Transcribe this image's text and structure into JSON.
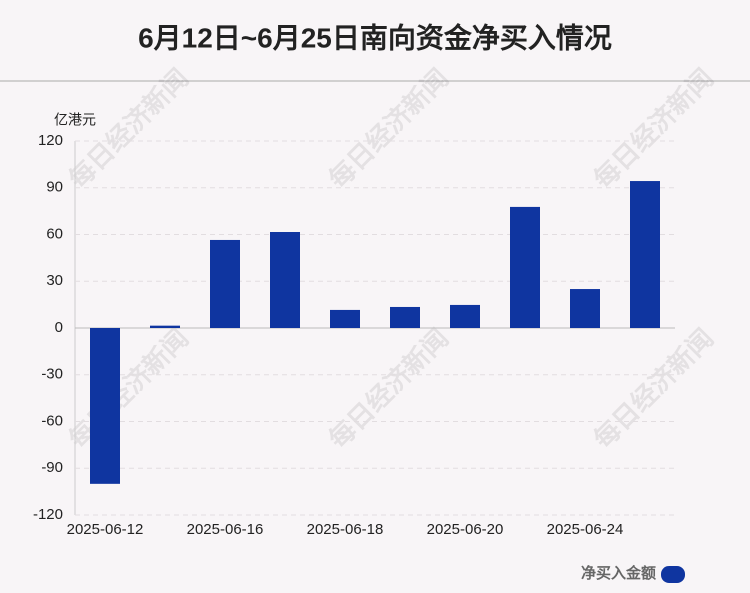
{
  "chart_data": {
    "type": "bar",
    "title": "6月12日~6月25日南向资金净买入情况",
    "y_unit": "亿港元",
    "watermark": "每日经济新闻",
    "categories": [
      "2025-06-12",
      null,
      "2025-06-16",
      null,
      "2025-06-18",
      null,
      "2025-06-20",
      null,
      "2025-06-24",
      null
    ],
    "series": [
      {
        "name": "净买入金额",
        "color": "#0f35a0",
        "values": [
          -100,
          1.5,
          56.5,
          61.6,
          11.6,
          13.5,
          14.8,
          77.7,
          25,
          94.3
        ]
      }
    ],
    "ylim": [
      -120,
      120
    ],
    "yticks": [
      -120,
      -90,
      -60,
      -30,
      0,
      30,
      60,
      90,
      120
    ],
    "grid": true,
    "legend": "bottom-right"
  }
}
